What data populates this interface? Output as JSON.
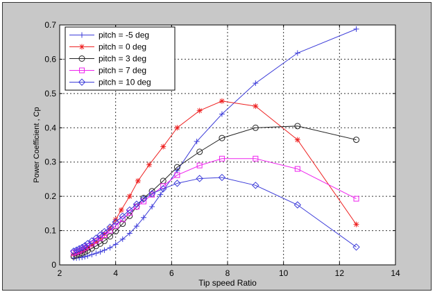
{
  "chart_data": {
    "type": "line",
    "title": "",
    "xlabel": "Tip speed Ratio",
    "ylabel": "Power Coefficient , Cp",
    "xlim": [
      2,
      14
    ],
    "ylim": [
      0,
      0.7
    ],
    "xticks": [
      2,
      4,
      6,
      8,
      10,
      12,
      14
    ],
    "yticks": [
      0,
      0.1,
      0.2,
      0.3,
      0.4,
      0.5,
      0.6,
      0.7
    ],
    "xtick_labels": [
      "2",
      "4",
      "6",
      "8",
      "10",
      "12",
      "14"
    ],
    "ytick_labels": [
      "0",
      "0.1",
      "0.2",
      "0.3",
      "0.4",
      "0.5",
      "0.6",
      "0.7"
    ],
    "grid": true,
    "legend_position": "top-left",
    "series": [
      {
        "name": "pitch = -5 deg",
        "color": "#3b3bd9",
        "marker": "plus",
        "x": [
          2.5,
          2.6,
          2.7,
          2.8,
          2.9,
          3.0,
          3.15,
          3.3,
          3.45,
          3.6,
          3.8,
          4.0,
          4.25,
          4.5,
          4.75,
          5.0,
          5.3,
          5.6,
          6.2,
          6.9,
          7.8,
          9.0,
          10.5,
          12.6
        ],
        "y": [
          0.02,
          0.02,
          0.021,
          0.022,
          0.024,
          0.026,
          0.03,
          0.034,
          0.038,
          0.043,
          0.05,
          0.06,
          0.075,
          0.092,
          0.113,
          0.138,
          0.17,
          0.205,
          0.275,
          0.36,
          0.44,
          0.53,
          0.618,
          0.688
        ]
      },
      {
        "name": "pitch = 0 deg",
        "color": "#ee2020",
        "marker": "star",
        "x": [
          2.5,
          2.6,
          2.7,
          2.8,
          2.9,
          3.0,
          3.15,
          3.3,
          3.45,
          3.6,
          3.8,
          4.0,
          4.2,
          4.5,
          4.8,
          5.2,
          5.7,
          6.2,
          7.0,
          7.8,
          9.0,
          10.5,
          12.6
        ],
        "y": [
          0.031,
          0.034,
          0.037,
          0.04,
          0.045,
          0.05,
          0.058,
          0.068,
          0.078,
          0.09,
          0.107,
          0.132,
          0.16,
          0.2,
          0.245,
          0.292,
          0.345,
          0.4,
          0.45,
          0.478,
          0.463,
          0.365,
          0.118
        ]
      },
      {
        "name": "pitch = 3 deg",
        "color": "#222222",
        "marker": "circle",
        "x": [
          2.5,
          2.6,
          2.7,
          2.8,
          2.9,
          3.0,
          3.15,
          3.3,
          3.45,
          3.6,
          3.8,
          4.0,
          4.25,
          4.5,
          4.75,
          5.0,
          5.3,
          5.7,
          6.2,
          7.0,
          7.8,
          9.0,
          10.5,
          12.6
        ],
        "y": [
          0.025,
          0.028,
          0.031,
          0.034,
          0.038,
          0.042,
          0.048,
          0.055,
          0.062,
          0.07,
          0.083,
          0.098,
          0.12,
          0.143,
          0.17,
          0.195,
          0.215,
          0.245,
          0.285,
          0.33,
          0.37,
          0.4,
          0.405,
          0.365
        ]
      },
      {
        "name": "pitch = 7 deg",
        "color": "#ee22ee",
        "marker": "square",
        "x": [
          2.5,
          2.6,
          2.7,
          2.8,
          2.9,
          3.0,
          3.15,
          3.3,
          3.45,
          3.6,
          3.8,
          4.0,
          4.25,
          4.5,
          4.75,
          5.0,
          5.3,
          5.7,
          6.2,
          7.0,
          7.8,
          9.0,
          10.5,
          12.6
        ],
        "y": [
          0.035,
          0.038,
          0.041,
          0.045,
          0.05,
          0.055,
          0.062,
          0.07,
          0.078,
          0.087,
          0.1,
          0.114,
          0.133,
          0.152,
          0.17,
          0.185,
          0.205,
          0.23,
          0.262,
          0.29,
          0.31,
          0.31,
          0.28,
          0.193
        ]
      },
      {
        "name": "pitch = 10 deg",
        "color": "#3b3bd9",
        "marker": "diamond",
        "x": [
          2.5,
          2.6,
          2.7,
          2.8,
          2.9,
          3.0,
          3.15,
          3.3,
          3.45,
          3.6,
          3.8,
          4.0,
          4.25,
          4.5,
          4.75,
          5.0,
          5.3,
          5.7,
          6.2,
          7.0,
          7.8,
          9.0,
          10.5,
          12.6
        ],
        "y": [
          0.04,
          0.043,
          0.047,
          0.051,
          0.056,
          0.062,
          0.07,
          0.078,
          0.087,
          0.097,
          0.11,
          0.125,
          0.142,
          0.16,
          0.177,
          0.192,
          0.208,
          0.222,
          0.238,
          0.252,
          0.255,
          0.232,
          0.175,
          0.052
        ]
      }
    ]
  }
}
